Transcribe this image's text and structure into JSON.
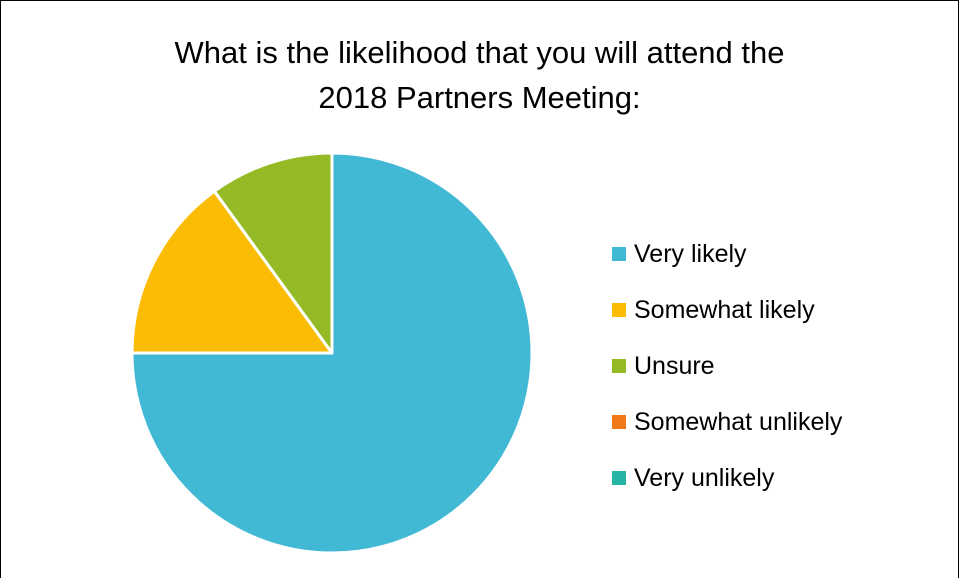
{
  "chart_data": {
    "type": "pie",
    "title_lines": [
      "What is the likelihood that you will attend the",
      "2018 Partners Meeting:"
    ],
    "slices": [
      {
        "label": "Very likely",
        "value": 75,
        "color": "#41B8D4"
      },
      {
        "label": "Somewhat likely",
        "value": 15,
        "color": "#FBBC05"
      },
      {
        "label": "Unsure",
        "value": 10,
        "color": "#94BB25"
      },
      {
        "label": "Somewhat unlikely",
        "value": 0,
        "color": "#F07A1A"
      },
      {
        "label": "Very unlikely",
        "value": 0,
        "color": "#26B5A4"
      }
    ],
    "legend_position": "right"
  }
}
